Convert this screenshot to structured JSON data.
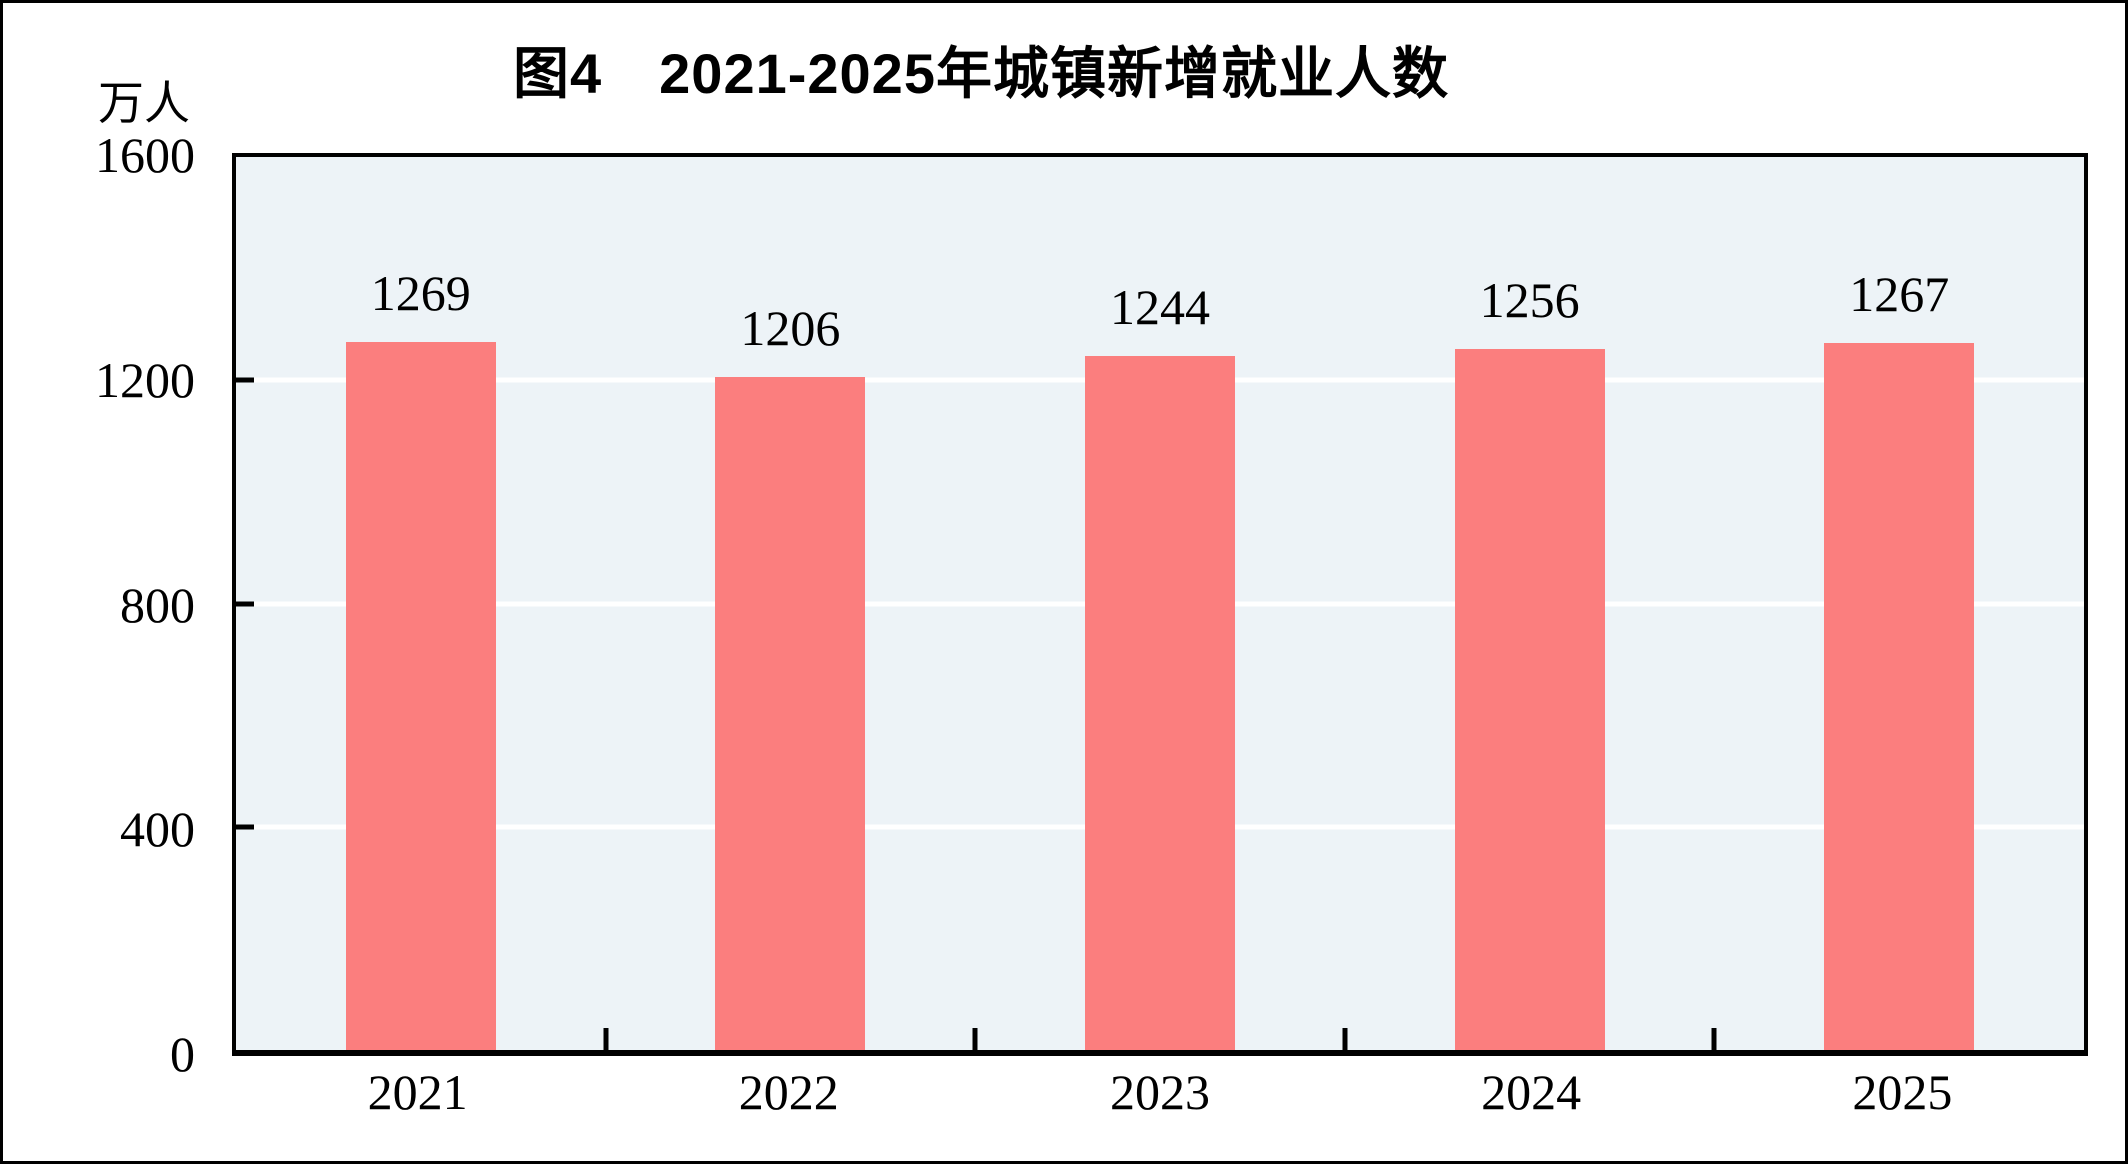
{
  "chart_data": {
    "type": "bar",
    "title": "图4　2021-2025年城镇新增就业人数",
    "unit_label": "万人",
    "categories": [
      "2021",
      "2022",
      "2023",
      "2024",
      "2025"
    ],
    "values": [
      1269,
      1206,
      1244,
      1256,
      1267
    ],
    "data_labels": [
      "1269",
      "1206",
      "1244",
      "1256",
      "1267"
    ],
    "ylim": [
      0,
      1600
    ],
    "ytick_labels": [
      "1600",
      "1200",
      "800",
      "400",
      "0"
    ],
    "ytick_values": [
      1600,
      1200,
      800,
      400,
      0
    ],
    "grid": {
      "horizontal": true,
      "levels": [
        1200,
        800,
        400
      ],
      "color": "#FFFFFF"
    },
    "legend_position": "none",
    "colors": {
      "bar": "#FB7E7E",
      "plot_background": "#EDF3F7",
      "gridline": "#FFFFFF",
      "axis": "#000000",
      "text": "#000000",
      "page_background": "#FFFFFF"
    }
  }
}
